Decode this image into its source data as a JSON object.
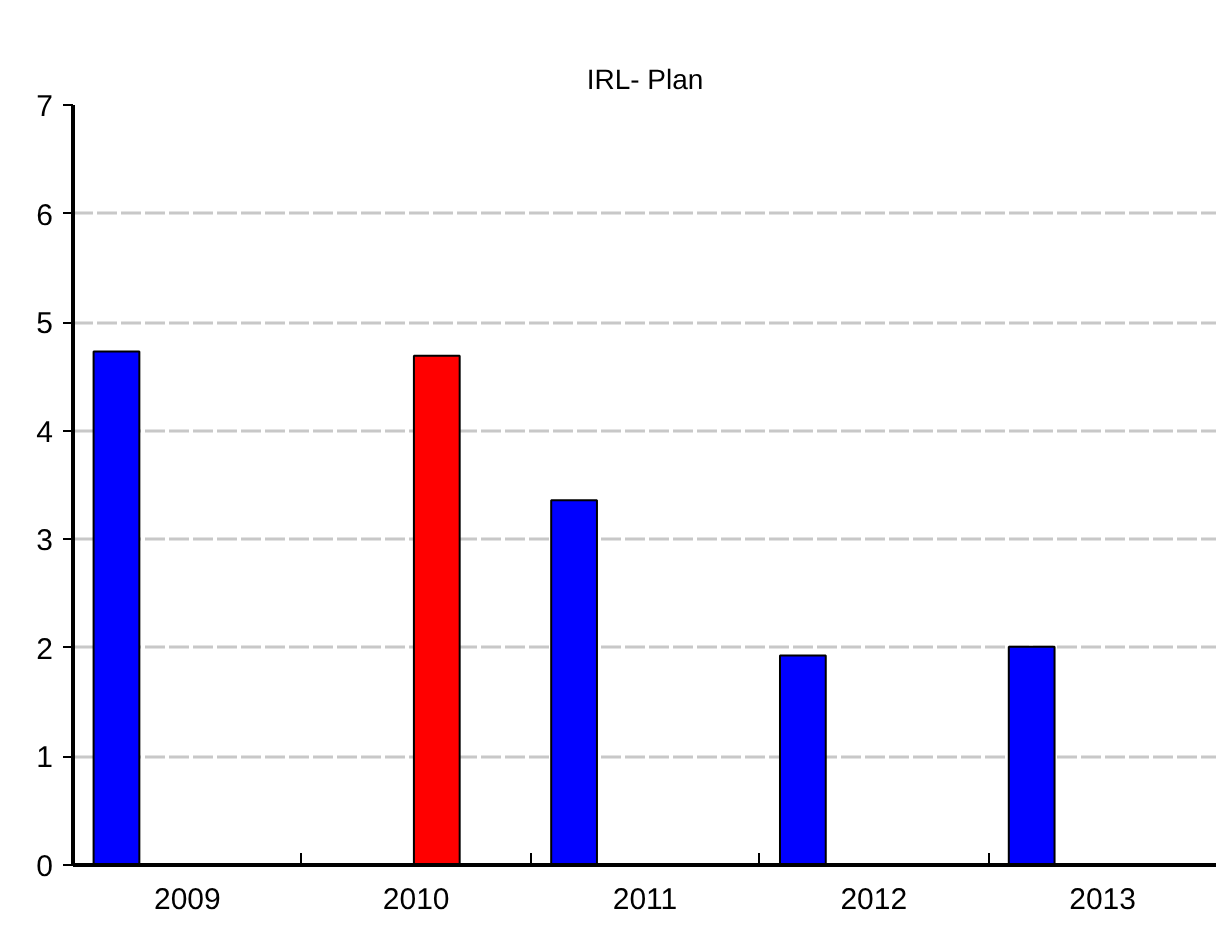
{
  "chart_data": {
    "type": "bar",
    "title": "IRL- Plan",
    "categories": [
      "2009",
      "2010",
      "2011",
      "2012",
      "2013"
    ],
    "series": [
      {
        "color": "#0000ff",
        "values": [
          4.73,
          null,
          3.36,
          1.93,
          2.01
        ]
      },
      {
        "color": "#ff0000",
        "values": [
          null,
          4.69,
          null,
          null,
          null
        ]
      }
    ],
    "ylim": [
      0,
      7
    ],
    "yticks": [
      0,
      1,
      2,
      3,
      4,
      5,
      6,
      7
    ],
    "grid": "y"
  }
}
